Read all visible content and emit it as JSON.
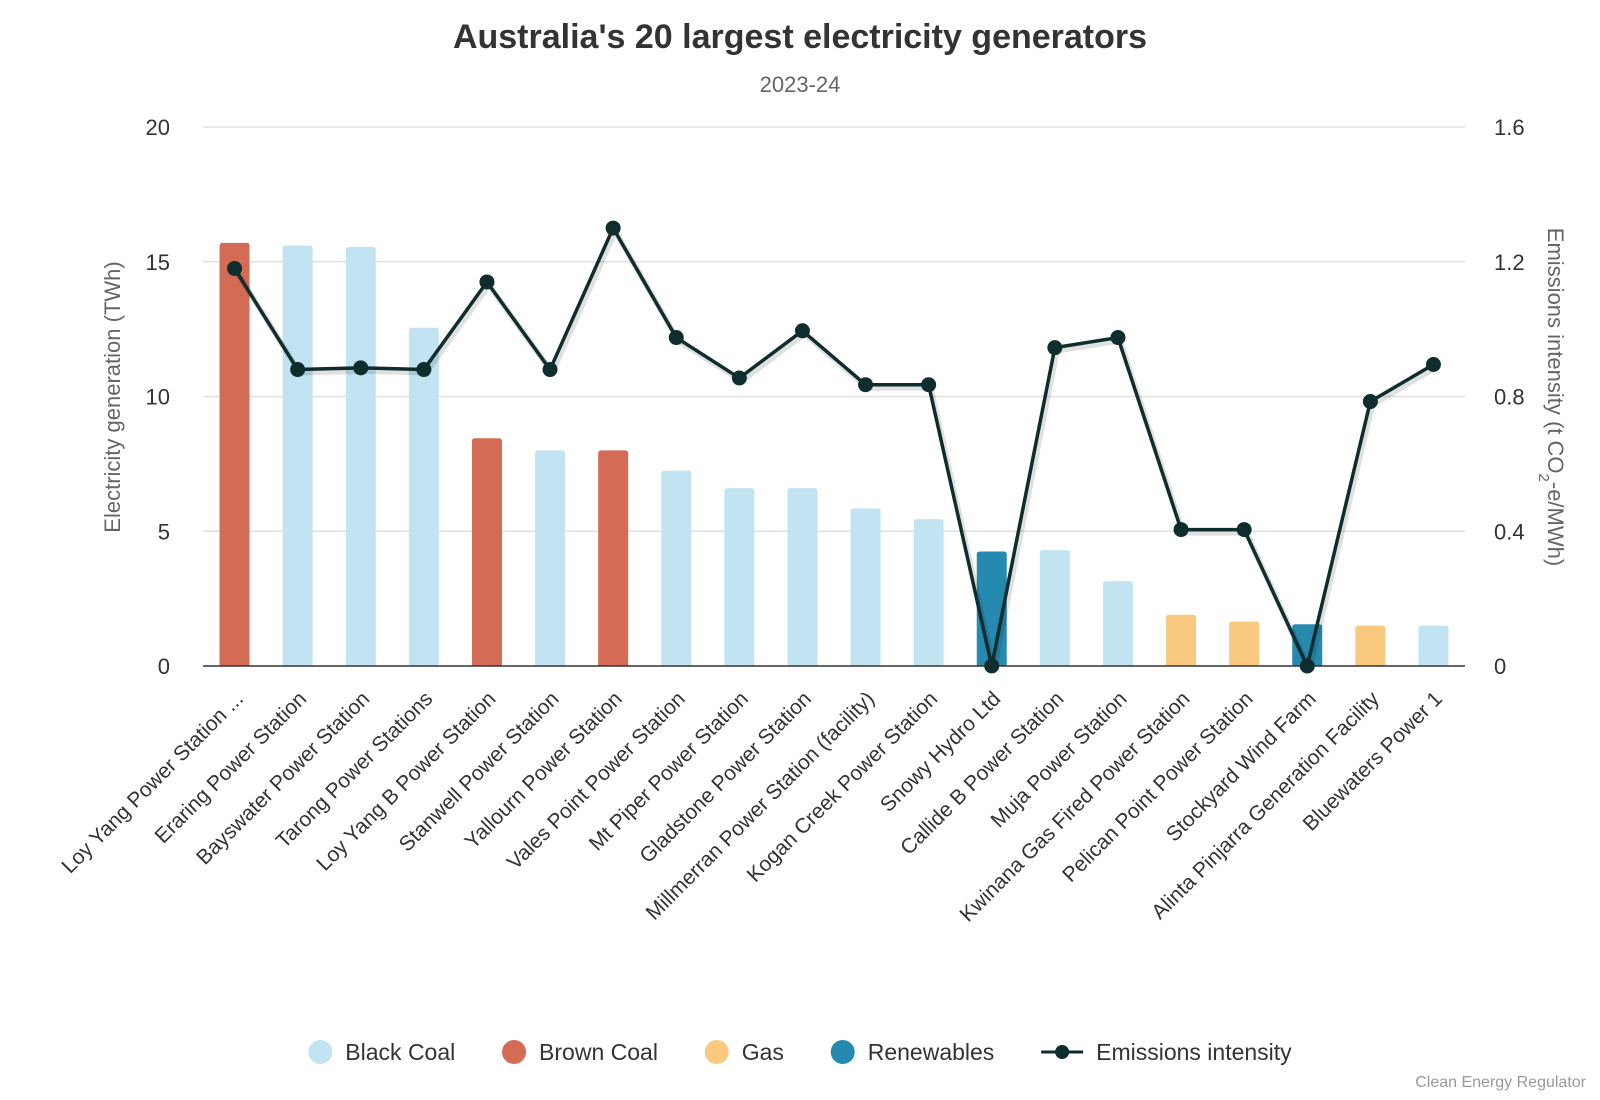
{
  "chart_data": {
    "type": "bar",
    "title": "Australia's 20 largest electricity generators",
    "subtitle": "2023-24",
    "categories": [
      "Loy Yang Power Station ...",
      "Eraring Power Station",
      "Bayswater Power Station",
      "Tarong Power Stations",
      "Loy Yang B Power Station",
      "Stanwell Power Station",
      "Yallourn Power Station",
      "Vales Point Power Station",
      "Mt Piper Power Station",
      "Gladstone Power Station",
      "Millmerran Power Station (facility)",
      "Kogan Creek Power Station",
      "Snowy Hydro Ltd",
      "Callide B Power Station",
      "Muja Power Station",
      "Kwinana Gas Fired Power Station",
      "Pelican Point Power Station",
      "Stockyard Wind Farm",
      "Alinta Pinjarra Generation Facility",
      "Bluewaters Power 1"
    ],
    "fuel_types": [
      "Brown Coal",
      "Black Coal",
      "Black Coal",
      "Black Coal",
      "Brown Coal",
      "Black Coal",
      "Brown Coal",
      "Black Coal",
      "Black Coal",
      "Black Coal",
      "Black Coal",
      "Black Coal",
      "Renewables",
      "Black Coal",
      "Black Coal",
      "Gas",
      "Gas",
      "Renewables",
      "Gas",
      "Black Coal"
    ],
    "series": [
      {
        "name": "Electricity generation",
        "axis": "left",
        "values": [
          15.7,
          15.6,
          15.55,
          12.55,
          8.45,
          8.0,
          8.0,
          7.25,
          6.6,
          6.6,
          5.85,
          5.45,
          4.25,
          4.3,
          3.15,
          1.9,
          1.65,
          1.55,
          1.5,
          1.5
        ]
      },
      {
        "name": "Emissions intensity",
        "axis": "right",
        "type": "line",
        "values": [
          1.18,
          0.88,
          0.885,
          0.88,
          1.14,
          0.88,
          1.3,
          0.975,
          0.855,
          0.995,
          0.835,
          0.835,
          0.0,
          0.945,
          0.975,
          0.405,
          0.405,
          0.0,
          0.785,
          0.895
        ]
      }
    ],
    "ylabel": "Electricity generation (TWh)",
    "ylim": [
      0,
      20
    ],
    "yticks": [
      "0",
      "5",
      "10",
      "15",
      "20"
    ],
    "y2label_main": "Emissions intensity (t CO",
    "y2label_sub": "2",
    "y2label_tail": "-e/MWh)",
    "y2lim": [
      0,
      1.6
    ],
    "y2ticks": [
      "0",
      "0.4",
      "0.8",
      "1.2",
      "1.6"
    ],
    "grid": true,
    "legend_position": "bottom",
    "legend": [
      {
        "label": "Black Coal",
        "color": "#c2e4f2",
        "kind": "bar"
      },
      {
        "label": "Brown Coal",
        "color": "#d46b55",
        "kind": "bar"
      },
      {
        "label": "Gas",
        "color": "#f9c97f",
        "kind": "bar"
      },
      {
        "label": "Renewables",
        "color": "#2689b0",
        "kind": "bar"
      },
      {
        "label": "Emissions intensity",
        "color": "#0f2d2d",
        "kind": "line"
      }
    ],
    "credit": "Clean Energy Regulator"
  }
}
